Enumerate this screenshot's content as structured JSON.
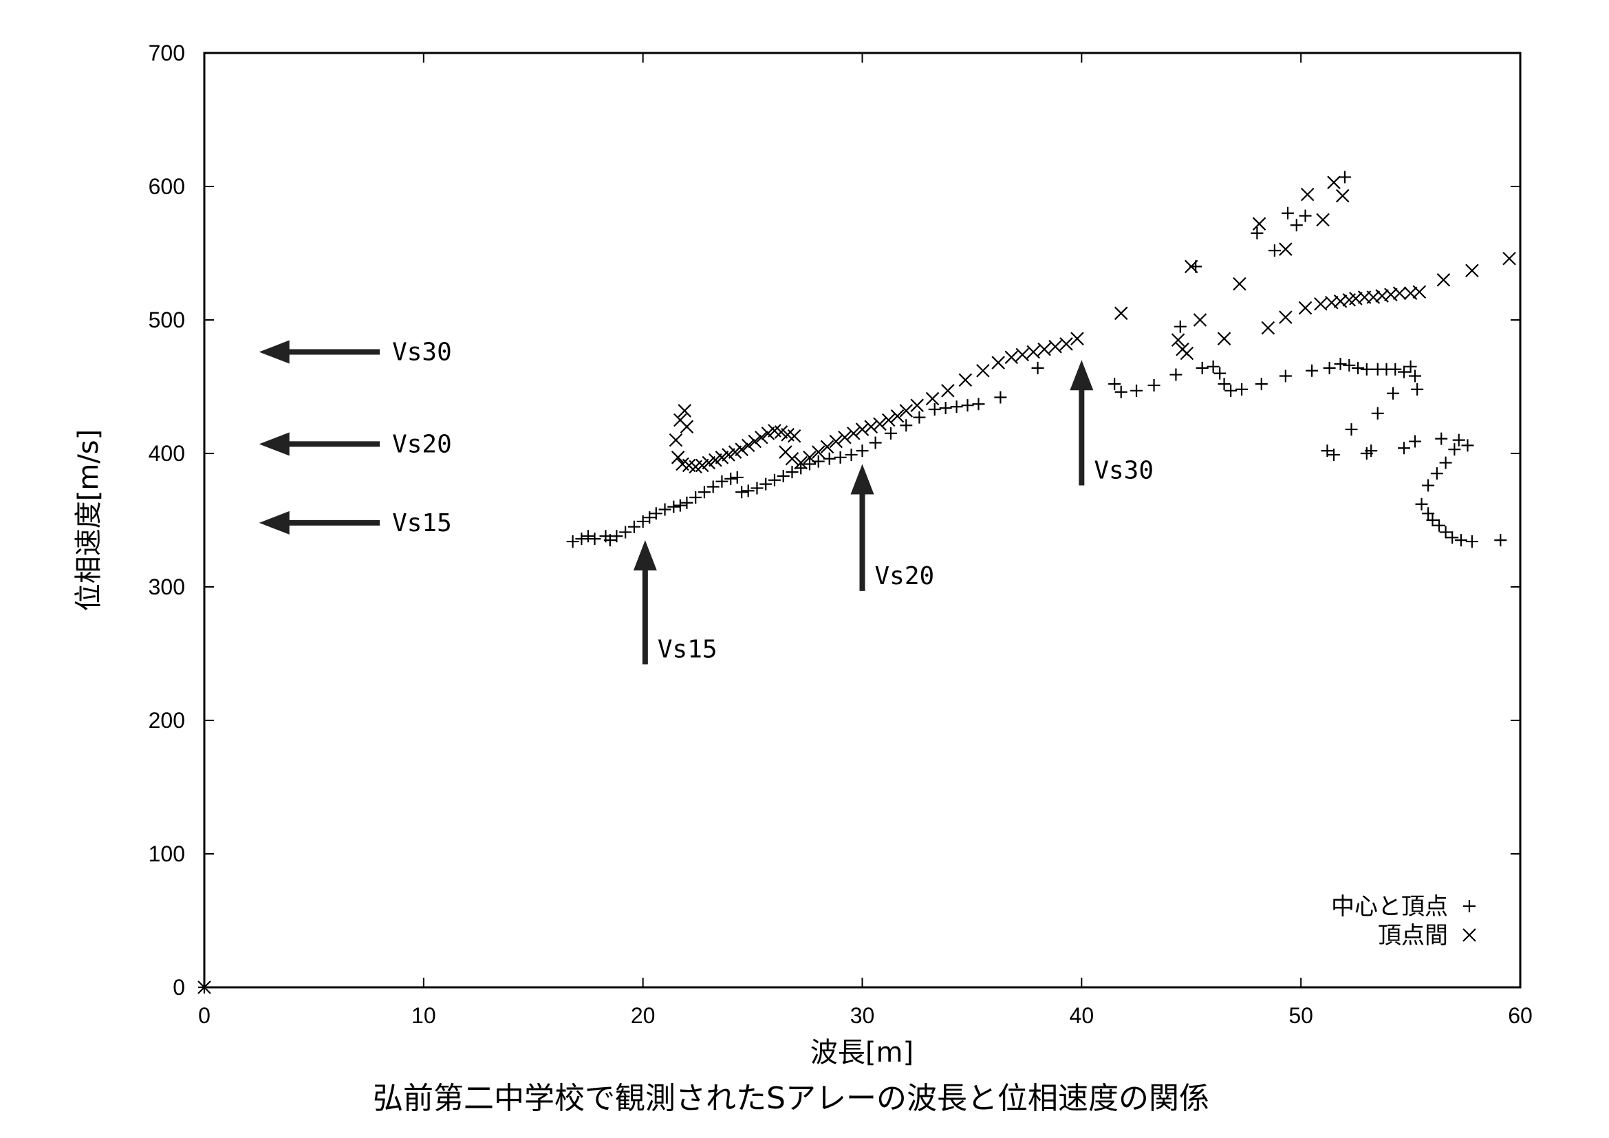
{
  "chart_data": {
    "type": "scatter",
    "caption": "弘前第二中学校で観測されたSアレーの波長と位相速度の関係",
    "xlabel": "波長[m]",
    "ylabel": "位相速度[m/s]",
    "xlim": [
      0,
      60
    ],
    "ylim": [
      0,
      700
    ],
    "xticks": [
      0,
      10,
      20,
      30,
      40,
      50,
      60
    ],
    "yticks": [
      0,
      100,
      200,
      300,
      400,
      500,
      600,
      700
    ],
    "grid": false,
    "legend_position": "bottom-right",
    "series": [
      {
        "name": "中心と頂点",
        "marker": "+",
        "points": [
          [
            0,
            0
          ],
          [
            16.8,
            334
          ],
          [
            17.2,
            336
          ],
          [
            17.5,
            338
          ],
          [
            17.8,
            336
          ],
          [
            18.3,
            338
          ],
          [
            18.5,
            335
          ],
          [
            18.8,
            338
          ],
          [
            19.2,
            341
          ],
          [
            19.6,
            345
          ],
          [
            20.0,
            349
          ],
          [
            20.3,
            352
          ],
          [
            20.6,
            355
          ],
          [
            21.0,
            358
          ],
          [
            21.4,
            360
          ],
          [
            21.7,
            361
          ],
          [
            22.0,
            363
          ],
          [
            22.4,
            367
          ],
          [
            22.8,
            371
          ],
          [
            23.2,
            375
          ],
          [
            23.6,
            379
          ],
          [
            24.0,
            381
          ],
          [
            24.3,
            382
          ],
          [
            24.5,
            371
          ],
          [
            24.8,
            372
          ],
          [
            25.2,
            374
          ],
          [
            25.6,
            377
          ],
          [
            26.0,
            380
          ],
          [
            26.4,
            383
          ],
          [
            26.8,
            386
          ],
          [
            27.2,
            389
          ],
          [
            27.6,
            392
          ],
          [
            28.0,
            394
          ],
          [
            28.5,
            396
          ],
          [
            29.0,
            397
          ],
          [
            29.5,
            399
          ],
          [
            30.0,
            402
          ],
          [
            30.6,
            408
          ],
          [
            31.3,
            415
          ],
          [
            32.0,
            421
          ],
          [
            32.6,
            427
          ],
          [
            33.3,
            433
          ],
          [
            33.8,
            434
          ],
          [
            34.3,
            435
          ],
          [
            34.8,
            436
          ],
          [
            35.3,
            437
          ],
          [
            36.3,
            442
          ],
          [
            38.0,
            464
          ],
          [
            41.5,
            452
          ],
          [
            41.8,
            446
          ],
          [
            42.5,
            447
          ],
          [
            43.3,
            451
          ],
          [
            44.3,
            459
          ],
          [
            44.5,
            495
          ],
          [
            45.2,
            540
          ],
          [
            45.5,
            464
          ],
          [
            46.0,
            465
          ],
          [
            46.3,
            460
          ],
          [
            46.5,
            452
          ],
          [
            46.8,
            447
          ],
          [
            47.3,
            448
          ],
          [
            48.0,
            565
          ],
          [
            48.2,
            452
          ],
          [
            48.8,
            552
          ],
          [
            49.3,
            458
          ],
          [
            49.4,
            580
          ],
          [
            49.8,
            571
          ],
          [
            50.2,
            578
          ],
          [
            50.5,
            462
          ],
          [
            51.2,
            402
          ],
          [
            51.3,
            464
          ],
          [
            51.5,
            399
          ],
          [
            51.8,
            467
          ],
          [
            52.0,
            607
          ],
          [
            52.2,
            466
          ],
          [
            52.3,
            418
          ],
          [
            52.6,
            464
          ],
          [
            53.0,
            463
          ],
          [
            53.5,
            463
          ],
          [
            53.9,
            463
          ],
          [
            54.3,
            463
          ],
          [
            54.7,
            461
          ],
          [
            55.0,
            465
          ],
          [
            55.2,
            458
          ],
          [
            53.0,
            400
          ],
          [
            53.5,
            430
          ],
          [
            53.2,
            402
          ],
          [
            54.2,
            445
          ],
          [
            54.7,
            404
          ],
          [
            55.3,
            448
          ],
          [
            55.5,
            362
          ],
          [
            55.8,
            355
          ],
          [
            56.0,
            350
          ],
          [
            56.3,
            346
          ],
          [
            56.6,
            341
          ],
          [
            56.9,
            337
          ],
          [
            57.3,
            335
          ],
          [
            57.6,
            406
          ],
          [
            57.8,
            334
          ],
          [
            55.8,
            376
          ],
          [
            56.2,
            385
          ],
          [
            56.6,
            393
          ],
          [
            57.0,
            403
          ],
          [
            57.2,
            410
          ],
          [
            59.1,
            335
          ],
          [
            55.2,
            409
          ],
          [
            56.4,
            411
          ]
        ]
      },
      {
        "name": "頂点間",
        "marker": "x",
        "points": [
          [
            0,
            0
          ],
          [
            21.5,
            410
          ],
          [
            21.7,
            425
          ],
          [
            21.9,
            432
          ],
          [
            22.0,
            420
          ],
          [
            21.6,
            397
          ],
          [
            21.8,
            392
          ],
          [
            22.1,
            391
          ],
          [
            22.4,
            390
          ],
          [
            22.7,
            391
          ],
          [
            23.0,
            393
          ],
          [
            23.3,
            395
          ],
          [
            23.6,
            397
          ],
          [
            23.9,
            399
          ],
          [
            24.2,
            401
          ],
          [
            24.5,
            403
          ],
          [
            24.8,
            406
          ],
          [
            25.1,
            409
          ],
          [
            25.4,
            412
          ],
          [
            25.7,
            415
          ],
          [
            26.0,
            417
          ],
          [
            26.3,
            416
          ],
          [
            26.6,
            414
          ],
          [
            26.9,
            413
          ],
          [
            26.5,
            401
          ],
          [
            26.8,
            396
          ],
          [
            27.2,
            393
          ],
          [
            27.6,
            397
          ],
          [
            28.0,
            401
          ],
          [
            28.4,
            405
          ],
          [
            28.8,
            409
          ],
          [
            29.2,
            412
          ],
          [
            29.6,
            415
          ],
          [
            30.0,
            418
          ],
          [
            30.4,
            420
          ],
          [
            30.8,
            422
          ],
          [
            31.2,
            425
          ],
          [
            31.6,
            428
          ],
          [
            32.0,
            432
          ],
          [
            32.5,
            436
          ],
          [
            33.2,
            441
          ],
          [
            33.9,
            447
          ],
          [
            34.7,
            455
          ],
          [
            35.5,
            462
          ],
          [
            36.2,
            468
          ],
          [
            36.8,
            472
          ],
          [
            37.3,
            474
          ],
          [
            37.8,
            476
          ],
          [
            38.3,
            478
          ],
          [
            38.8,
            480
          ],
          [
            39.3,
            482
          ],
          [
            39.8,
            486
          ],
          [
            41.8,
            505
          ],
          [
            44.4,
            485
          ],
          [
            44.6,
            478
          ],
          [
            44.8,
            475
          ],
          [
            45.0,
            540
          ],
          [
            45.4,
            500
          ],
          [
            46.5,
            486
          ],
          [
            47.2,
            527
          ],
          [
            48.1,
            572
          ],
          [
            48.5,
            494
          ],
          [
            49.3,
            502
          ],
          [
            49.3,
            553
          ],
          [
            50.2,
            509
          ],
          [
            50.3,
            594
          ],
          [
            50.9,
            512
          ],
          [
            51.0,
            575
          ],
          [
            51.4,
            513
          ],
          [
            51.5,
            603
          ],
          [
            51.8,
            514
          ],
          [
            51.9,
            593
          ],
          [
            52.2,
            515
          ],
          [
            52.5,
            516
          ],
          [
            52.9,
            517
          ],
          [
            53.3,
            517
          ],
          [
            53.7,
            518
          ],
          [
            54.1,
            519
          ],
          [
            54.5,
            520
          ],
          [
            55.0,
            520
          ],
          [
            55.4,
            521
          ],
          [
            56.5,
            530
          ],
          [
            57.8,
            537
          ],
          [
            59.5,
            546
          ]
        ]
      }
    ],
    "annotations": [
      {
        "label": "Vs30",
        "direction": "left",
        "x_tip": 2.5,
        "x_tail": 8.0,
        "y": 476
      },
      {
        "label": "Vs20",
        "direction": "left",
        "x_tip": 2.5,
        "x_tail": 8.0,
        "y": 407
      },
      {
        "label": "Vs15",
        "direction": "left",
        "x_tip": 2.5,
        "x_tail": 8.0,
        "y": 348
      },
      {
        "label": "Vs15",
        "direction": "up",
        "x": 20.1,
        "y_tip": 335,
        "y_tail": 242
      },
      {
        "label": "Vs20",
        "direction": "up",
        "x": 30.0,
        "y_tip": 392,
        "y_tail": 297
      },
      {
        "label": "Vs30",
        "direction": "up",
        "x": 40.0,
        "y_tip": 470,
        "y_tail": 376
      }
    ]
  }
}
